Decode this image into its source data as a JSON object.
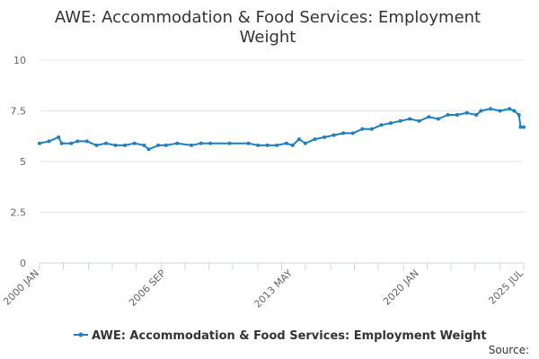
{
  "chart_data": {
    "type": "line",
    "title": "AWE: Accommodation & Food Services: Employment Weight",
    "title_lines": [
      "AWE: Accommodation & Food Services: Employment",
      "Weight"
    ],
    "source_label": "Source:",
    "xlabel": "",
    "ylabel": "",
    "x_start": "2000 JAN",
    "x_end": "2025 JUL",
    "ylim": [
      0,
      10
    ],
    "y_ticks": [
      0,
      2.5,
      5,
      7.5,
      10
    ],
    "y_tick_labels": [
      "0",
      "2.5",
      "5",
      "7.5",
      "10"
    ],
    "x_tick_labels": [
      "2000 JAN",
      "2006 SEP",
      "2013 MAY",
      "2020 JAN",
      "2025 JUL"
    ],
    "grid": true,
    "legend_position": "bottom-center",
    "color": "#1f7fbf",
    "series": [
      {
        "name": "AWE: Accommodation & Food Services: Employment Weight",
        "points": [
          [
            "2000-01",
            5.9
          ],
          [
            "2000-07",
            6.0
          ],
          [
            "2001-01",
            6.2
          ],
          [
            "2001-03",
            5.9
          ],
          [
            "2001-09",
            5.9
          ],
          [
            "2002-01",
            6.0
          ],
          [
            "2002-07",
            6.0
          ],
          [
            "2003-01",
            5.8
          ],
          [
            "2003-07",
            5.9
          ],
          [
            "2004-01",
            5.8
          ],
          [
            "2004-07",
            5.8
          ],
          [
            "2005-01",
            5.9
          ],
          [
            "2005-07",
            5.8
          ],
          [
            "2005-10",
            5.6
          ],
          [
            "2006-04",
            5.8
          ],
          [
            "2006-09",
            5.8
          ],
          [
            "2007-04",
            5.9
          ],
          [
            "2008-01",
            5.8
          ],
          [
            "2008-07",
            5.9
          ],
          [
            "2009-01",
            5.9
          ],
          [
            "2010-01",
            5.9
          ],
          [
            "2011-01",
            5.9
          ],
          [
            "2011-07",
            5.8
          ],
          [
            "2012-01",
            5.8
          ],
          [
            "2012-07",
            5.8
          ],
          [
            "2013-01",
            5.9
          ],
          [
            "2013-05",
            5.8
          ],
          [
            "2013-09",
            6.1
          ],
          [
            "2014-01",
            5.9
          ],
          [
            "2014-07",
            6.1
          ],
          [
            "2015-01",
            6.2
          ],
          [
            "2015-07",
            6.3
          ],
          [
            "2016-01",
            6.4
          ],
          [
            "2016-07",
            6.4
          ],
          [
            "2017-01",
            6.6
          ],
          [
            "2017-07",
            6.6
          ],
          [
            "2018-01",
            6.8
          ],
          [
            "2018-07",
            6.9
          ],
          [
            "2019-01",
            7.0
          ],
          [
            "2019-07",
            7.1
          ],
          [
            "2020-01",
            7.0
          ],
          [
            "2020-07",
            7.2
          ],
          [
            "2021-01",
            7.1
          ],
          [
            "2021-07",
            7.3
          ],
          [
            "2022-01",
            7.3
          ],
          [
            "2022-07",
            7.4
          ],
          [
            "2023-01",
            7.3
          ],
          [
            "2023-04",
            7.5
          ],
          [
            "2023-10",
            7.6
          ],
          [
            "2024-04",
            7.5
          ],
          [
            "2024-10",
            7.6
          ],
          [
            "2025-01",
            7.5
          ],
          [
            "2025-04",
            7.3
          ],
          [
            "2025-05",
            6.7
          ],
          [
            "2025-07",
            6.7
          ]
        ]
      }
    ]
  }
}
